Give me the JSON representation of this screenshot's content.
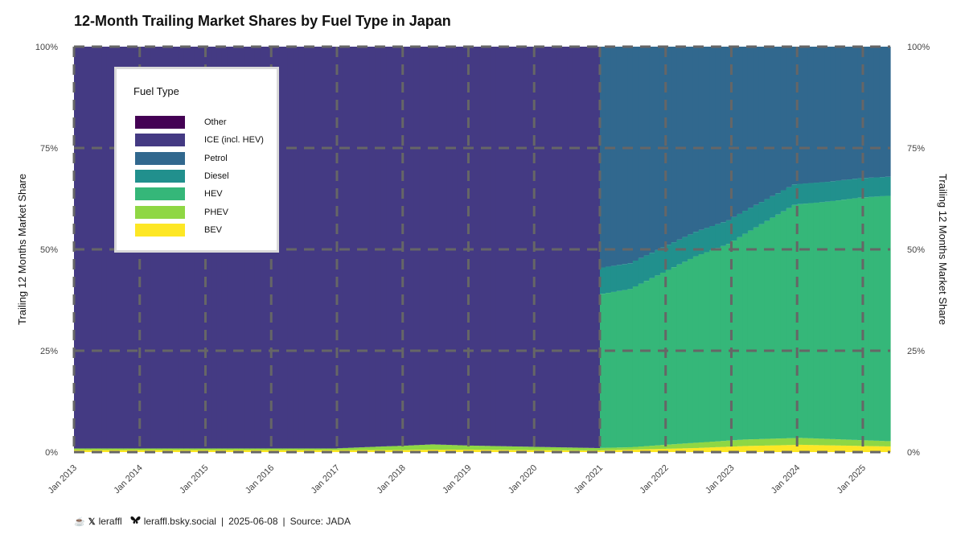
{
  "title": "12-Month Trailing Market Shares by Fuel Type in Japan",
  "caption": {
    "x_handle": "leraffl",
    "bsky_handle": "leraffl.bsky.social",
    "date": "2025-06-08",
    "source": "Source: JADA",
    "separator": "|"
  },
  "legend": {
    "title": "Fuel Type"
  },
  "chart_data": {
    "type": "area",
    "title": "12-Month Trailing Market Shares by Fuel Type in Japan",
    "ylabel": "Trailing 12 Months Market Share",
    "ylabel_right": "Trailing 12 Months Market Share",
    "xlabel": "",
    "x_range": [
      "2013-01",
      "2025-05"
    ],
    "ylim": [
      0,
      100
    ],
    "y_ticks": [
      "0%",
      "25%",
      "50%",
      "75%",
      "100%"
    ],
    "x_ticks": [
      "Jan 2013",
      "Jan 2014",
      "Jan 2015",
      "Jan 2016",
      "Jan 2017",
      "Jan 2018",
      "Jan 2019",
      "Jan 2020",
      "Jan 2021",
      "Jan 2022",
      "Jan 2023",
      "Jan 2024",
      "Jan 2025"
    ],
    "grid": true,
    "grid_style": "dashed",
    "legend_position": "top-left",
    "series_order": [
      "Other",
      "ICE (incl. HEV)",
      "Petrol",
      "Diesel",
      "HEV",
      "PHEV",
      "BEV"
    ],
    "colors": {
      "Other": "#440154",
      "ICE (incl. HEV)": "#443a83",
      "Petrol": "#31688e",
      "Diesel": "#21908d",
      "HEV": "#35b779",
      "PHEV": "#8fd744",
      "BEV": "#fde725"
    },
    "keyframes": {
      "BEV": [
        [
          "2013-01",
          0.5
        ],
        [
          "2017-12",
          0.5
        ],
        [
          "2018-06",
          0.6
        ],
        [
          "2019-01",
          0.6
        ],
        [
          "2020-12",
          0.4
        ],
        [
          "2021-06",
          0.6
        ],
        [
          "2022-06",
          1.0
        ],
        [
          "2023-03",
          1.5
        ],
        [
          "2024-01",
          1.8
        ],
        [
          "2025-05",
          1.4
        ]
      ],
      "PHEV": [
        [
          "2013-01",
          0.4
        ],
        [
          "2016-12",
          0.4
        ],
        [
          "2017-09",
          0.9
        ],
        [
          "2018-06",
          1.3
        ],
        [
          "2019-01",
          1.0
        ],
        [
          "2020-12",
          0.6
        ],
        [
          "2021-06",
          0.6
        ],
        [
          "2022-06",
          1.3
        ],
        [
          "2023-03",
          1.6
        ],
        [
          "2024-01",
          1.7
        ],
        [
          "2025-05",
          1.3
        ]
      ],
      "HEV": [
        [
          "2021-01",
          38.0
        ],
        [
          "2021-06",
          39.0
        ],
        [
          "2021-12",
          42.5
        ],
        [
          "2022-06",
          46.0
        ],
        [
          "2022-12",
          48.5
        ],
        [
          "2023-06",
          53.0
        ],
        [
          "2023-12",
          57.5
        ],
        [
          "2024-06",
          58.5
        ],
        [
          "2024-12",
          59.8
        ],
        [
          "2025-05",
          60.5
        ]
      ],
      "Diesel": [
        [
          "2021-01",
          6.5
        ],
        [
          "2022-01",
          6.2
        ],
        [
          "2023-01",
          5.8
        ],
        [
          "2024-01",
          5.0
        ],
        [
          "2025-05",
          4.7
        ]
      ],
      "Other": [
        [
          "2013-01",
          0.0
        ],
        [
          "2025-05",
          0.0
        ]
      ]
    }
  }
}
